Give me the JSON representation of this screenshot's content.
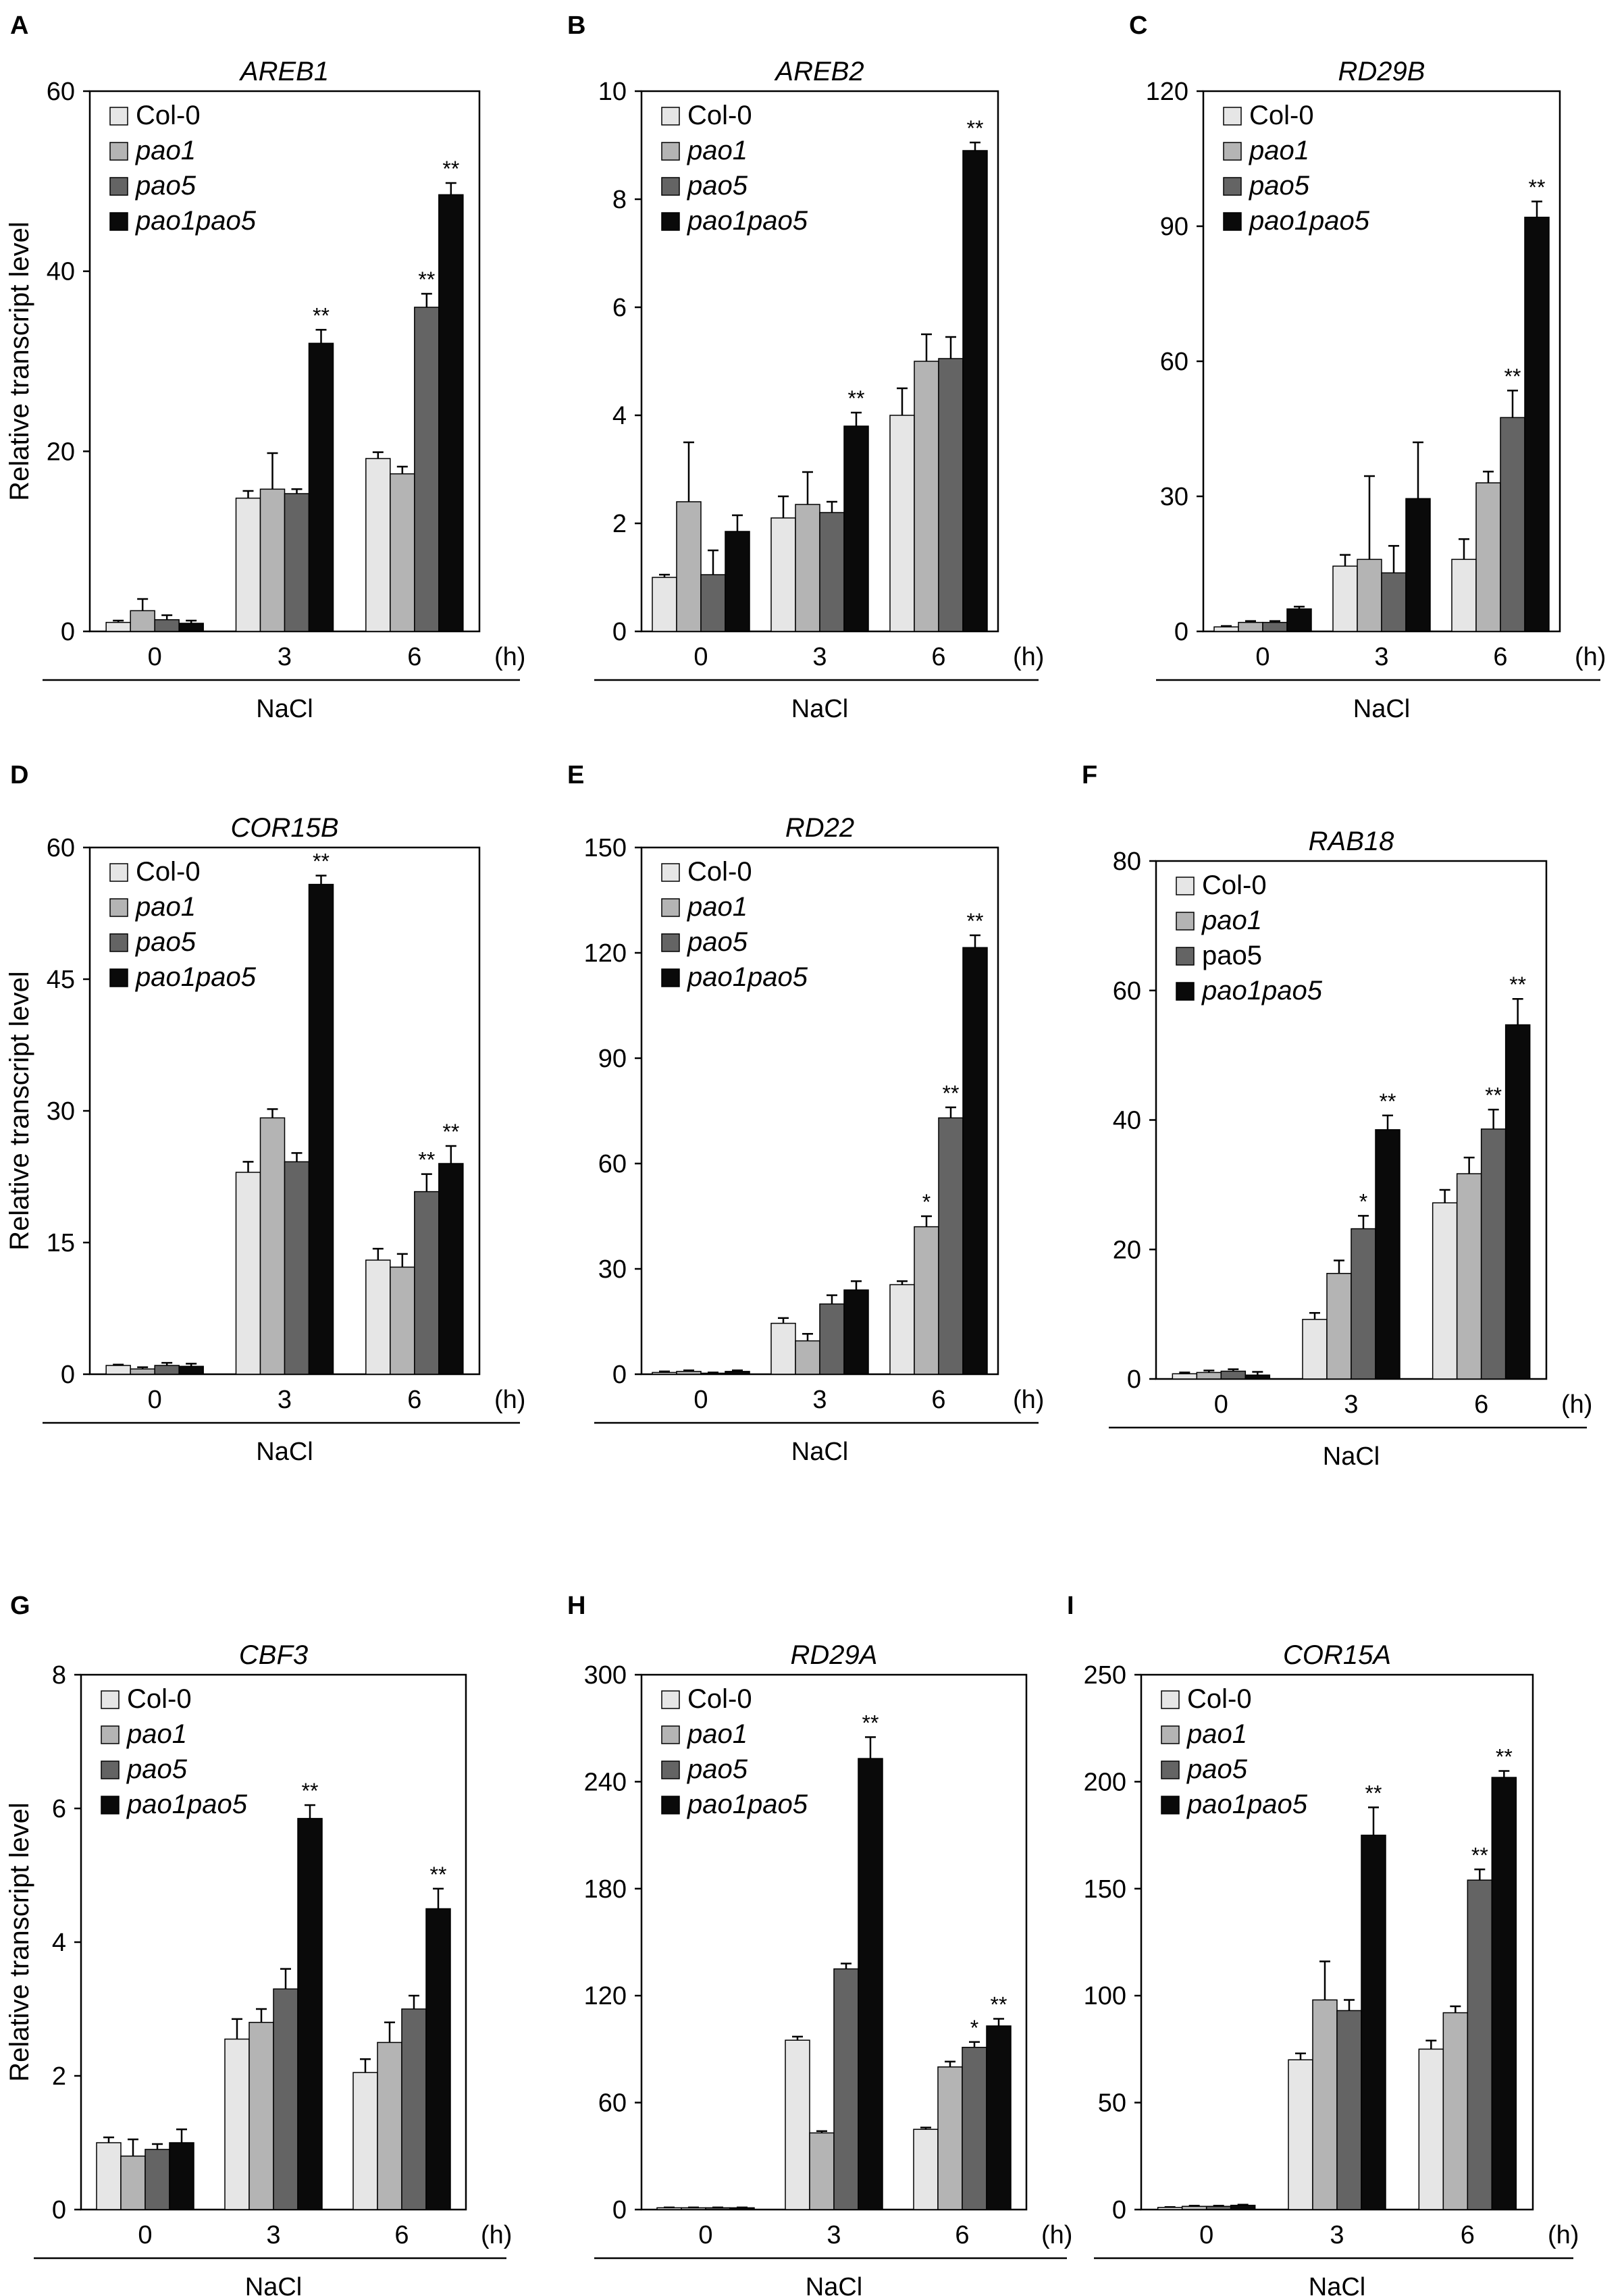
{
  "figure": {
    "colors": {
      "Col-0": "#e6e6e6",
      "pao1": "#b4b4b4",
      "pao5": "#646464",
      "pao1pao5": "#0a0a0a"
    },
    "time_unit": "(h)",
    "treatment": "NaCl",
    "ylabel": "Relative transcript level"
  },
  "chart_data": [
    {
      "panel": "A",
      "type": "bar",
      "title": "AREB1",
      "categories": [
        "0",
        "3",
        "6"
      ],
      "ylim": [
        0,
        60
      ],
      "yticks": [
        0,
        20,
        40,
        60
      ],
      "series": [
        {
          "name": "Col-0",
          "italic": false,
          "values": [
            1,
            14.8,
            19.2
          ],
          "errors": [
            0.2,
            0.8,
            0.7
          ]
        },
        {
          "name": "pao1",
          "italic": true,
          "values": [
            2.3,
            15.8,
            17.5
          ],
          "errors": [
            1.3,
            4.0,
            0.8
          ]
        },
        {
          "name": "pao5",
          "italic": true,
          "values": [
            1.3,
            15.3,
            36
          ],
          "errors": [
            0.5,
            0.5,
            1.5
          ]
        },
        {
          "name": "pao1pao5",
          "italic": true,
          "values": [
            0.9,
            32,
            48.5
          ],
          "errors": [
            0.3,
            1.5,
            1.3
          ]
        }
      ],
      "sig": [
        [
          "",
          "",
          "",
          ""
        ],
        [
          "",
          "",
          "",
          "**"
        ],
        [
          "",
          "",
          "**",
          "**"
        ]
      ]
    },
    {
      "panel": "B",
      "type": "bar",
      "title": "AREB2",
      "categories": [
        "0",
        "3",
        "6"
      ],
      "ylim": [
        0,
        10
      ],
      "yticks": [
        0,
        2,
        4,
        6,
        8,
        10
      ],
      "series": [
        {
          "name": "Col-0",
          "italic": false,
          "values": [
            1,
            2.1,
            4
          ],
          "errors": [
            0.05,
            0.4,
            0.5
          ]
        },
        {
          "name": "pao1",
          "italic": true,
          "values": [
            2.4,
            2.35,
            5
          ],
          "errors": [
            1.1,
            0.6,
            0.5
          ]
        },
        {
          "name": "pao5",
          "italic": true,
          "values": [
            1.05,
            2.2,
            5.05
          ],
          "errors": [
            0.45,
            0.2,
            0.4
          ]
        },
        {
          "name": "pao1pao5",
          "italic": true,
          "values": [
            1.85,
            3.8,
            8.9
          ],
          "errors": [
            0.3,
            0.25,
            0.15
          ]
        }
      ],
      "sig": [
        [
          "",
          "",
          "",
          ""
        ],
        [
          "",
          "",
          "",
          "**"
        ],
        [
          "",
          "",
          "",
          "**"
        ]
      ]
    },
    {
      "panel": "C",
      "type": "bar",
      "title": "RD29B",
      "categories": [
        "0",
        "3",
        "6"
      ],
      "ylim": [
        0,
        120
      ],
      "yticks": [
        0,
        30,
        60,
        90,
        120
      ],
      "series": [
        {
          "name": "Col-0",
          "italic": false,
          "values": [
            1,
            14.5,
            16
          ],
          "errors": [
            0.2,
            2.5,
            4.5
          ]
        },
        {
          "name": "pao1",
          "italic": true,
          "values": [
            2,
            16,
            33
          ],
          "errors": [
            0.3,
            18.5,
            2.5
          ]
        },
        {
          "name": "pao5",
          "italic": true,
          "values": [
            2,
            13,
            47.5
          ],
          "errors": [
            0.3,
            6,
            6
          ]
        },
        {
          "name": "pao1pao5",
          "italic": true,
          "values": [
            5,
            29.5,
            92
          ],
          "errors": [
            0.5,
            12.5,
            3.5
          ]
        }
      ],
      "sig": [
        [
          "",
          "",
          "",
          ""
        ],
        [
          "",
          "",
          "",
          ""
        ],
        [
          "",
          "",
          "**",
          "**"
        ]
      ]
    },
    {
      "panel": "D",
      "type": "bar",
      "title": "COR15B",
      "categories": [
        "0",
        "3",
        "6"
      ],
      "ylim": [
        0,
        60
      ],
      "yticks": [
        0,
        15,
        30,
        45,
        60
      ],
      "series": [
        {
          "name": "Col-0",
          "italic": false,
          "values": [
            1,
            23,
            13
          ],
          "errors": [
            0.1,
            1.2,
            1.3
          ]
        },
        {
          "name": "pao1",
          "italic": true,
          "values": [
            0.6,
            29.2,
            12.2
          ],
          "errors": [
            0.2,
            1.0,
            1.5
          ]
        },
        {
          "name": "pao5",
          "italic": true,
          "values": [
            1,
            24.2,
            20.8
          ],
          "errors": [
            0.3,
            1.0,
            2.0
          ]
        },
        {
          "name": "pao1pao5",
          "italic": true,
          "values": [
            0.9,
            55.8,
            24
          ],
          "errors": [
            0.3,
            1.0,
            2.0
          ]
        }
      ],
      "sig": [
        [
          "",
          "",
          "",
          ""
        ],
        [
          "",
          "",
          "",
          "**"
        ],
        [
          "",
          "",
          "**",
          "**"
        ]
      ]
    },
    {
      "panel": "E",
      "type": "bar",
      "title": "RD22",
      "categories": [
        "0",
        "3",
        "6"
      ],
      "ylim": [
        0,
        150
      ],
      "yticks": [
        0,
        30,
        60,
        90,
        120,
        150
      ],
      "series": [
        {
          "name": "Col-0",
          "italic": false,
          "values": [
            0.5,
            14.5,
            25.5
          ],
          "errors": [
            0.3,
            1.5,
            1.0
          ]
        },
        {
          "name": "pao1",
          "italic": true,
          "values": [
            0.8,
            9.5,
            42
          ],
          "errors": [
            0.3,
            2.0,
            3.0
          ]
        },
        {
          "name": "pao5",
          "italic": true,
          "values": [
            0.3,
            20,
            73
          ],
          "errors": [
            0.2,
            2.5,
            3.0
          ]
        },
        {
          "name": "pao1pao5",
          "italic": true,
          "values": [
            0.8,
            24,
            121.5
          ],
          "errors": [
            0.3,
            2.5,
            3.5
          ]
        }
      ],
      "sig": [
        [
          "",
          "",
          "",
          ""
        ],
        [
          "",
          "",
          "",
          ""
        ],
        [
          "",
          "*",
          "**",
          "**"
        ]
      ]
    },
    {
      "panel": "F",
      "type": "bar",
      "title": "RAB18",
      "categories": [
        "0",
        "3",
        "6"
      ],
      "ylim": [
        0,
        80
      ],
      "yticks": [
        0,
        20,
        40,
        60,
        80
      ],
      "series": [
        {
          "name": "Col-0",
          "italic": false,
          "values": [
            0.8,
            9.2,
            27.2
          ],
          "errors": [
            0.2,
            1.0,
            2.0
          ]
        },
        {
          "name": "pao1",
          "italic": true,
          "values": [
            1.0,
            16.3,
            31.7
          ],
          "errors": [
            0.3,
            2.0,
            2.5
          ]
        },
        {
          "name": "pao5",
          "italic": false,
          "values": [
            1.2,
            23.2,
            38.6
          ],
          "errors": [
            0.3,
            2.0,
            3.0
          ]
        },
        {
          "name": "pao1pao5",
          "italic": true,
          "values": [
            0.6,
            38.5,
            54.7
          ],
          "errors": [
            0.5,
            2.2,
            4.0
          ]
        }
      ],
      "sig": [
        [
          "",
          "",
          "",
          ""
        ],
        [
          "",
          "",
          "*",
          "**"
        ],
        [
          "",
          "",
          "**",
          "**"
        ]
      ]
    },
    {
      "panel": "G",
      "type": "bar",
      "title": "CBF3",
      "categories": [
        "0",
        "3",
        "6"
      ],
      "ylim": [
        0,
        8
      ],
      "yticks": [
        0,
        2,
        4,
        6,
        8
      ],
      "series": [
        {
          "name": "Col-0",
          "italic": false,
          "values": [
            1.0,
            2.55,
            2.05
          ],
          "errors": [
            0.08,
            0.3,
            0.2
          ]
        },
        {
          "name": "pao1",
          "italic": true,
          "values": [
            0.8,
            2.8,
            2.5
          ],
          "errors": [
            0.25,
            0.2,
            0.3
          ]
        },
        {
          "name": "pao5",
          "italic": true,
          "values": [
            0.9,
            3.3,
            3.0
          ],
          "errors": [
            0.08,
            0.3,
            0.2
          ]
        },
        {
          "name": "pao1pao5",
          "italic": true,
          "values": [
            1.0,
            5.85,
            4.5
          ],
          "errors": [
            0.2,
            0.2,
            0.3
          ]
        }
      ],
      "sig": [
        [
          "",
          "",
          "",
          ""
        ],
        [
          "",
          "",
          "",
          "**"
        ],
        [
          "",
          "",
          "",
          "**"
        ]
      ]
    },
    {
      "panel": "H",
      "type": "bar",
      "title": "RD29A",
      "categories": [
        "0",
        "3",
        "6"
      ],
      "ylim": [
        0,
        300
      ],
      "yticks": [
        0,
        60,
        120,
        180,
        240,
        300
      ],
      "series": [
        {
          "name": "Col-0",
          "italic": false,
          "values": [
            1,
            95,
            45
          ],
          "errors": [
            0.2,
            2.0,
            1.0
          ]
        },
        {
          "name": "pao1",
          "italic": true,
          "values": [
            1,
            43,
            80
          ],
          "errors": [
            0.2,
            1.0,
            3.0
          ]
        },
        {
          "name": "pao5",
          "italic": true,
          "values": [
            1,
            135,
            91
          ],
          "errors": [
            0.2,
            3.0,
            3.0
          ]
        },
        {
          "name": "pao1pao5",
          "italic": true,
          "values": [
            1,
            253,
            103
          ],
          "errors": [
            0.2,
            12.0,
            4.0
          ]
        }
      ],
      "sig": [
        [
          "",
          "",
          "",
          ""
        ],
        [
          "",
          "",
          "",
          "**"
        ],
        [
          "",
          "",
          "*",
          "**"
        ]
      ]
    },
    {
      "panel": "I",
      "type": "bar",
      "title": "COR15A",
      "categories": [
        "0",
        "3",
        "6"
      ],
      "ylim": [
        0,
        250
      ],
      "yticks": [
        0,
        50,
        100,
        150,
        200,
        250
      ],
      "series": [
        {
          "name": "Col-0",
          "italic": false,
          "values": [
            1,
            70,
            75
          ],
          "errors": [
            0.2,
            3.0,
            4.0
          ]
        },
        {
          "name": "pao1",
          "italic": true,
          "values": [
            1.5,
            98,
            92
          ],
          "errors": [
            0.3,
            18.0,
            3.0
          ]
        },
        {
          "name": "pao5",
          "italic": true,
          "values": [
            1.5,
            93,
            154
          ],
          "errors": [
            0.3,
            5.0,
            5.0
          ]
        },
        {
          "name": "pao1pao5",
          "italic": true,
          "values": [
            2,
            175,
            202
          ],
          "errors": [
            0.3,
            13.0,
            3.0
          ]
        }
      ],
      "sig": [
        [
          "",
          "",
          "",
          ""
        ],
        [
          "",
          "",
          "",
          "**"
        ],
        [
          "",
          "",
          "**",
          "**"
        ]
      ]
    }
  ]
}
